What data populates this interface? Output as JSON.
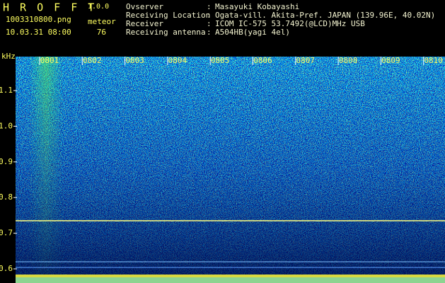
{
  "header": {
    "app_name": "H R O F F T",
    "version": "1.0.0",
    "file_name": "1003310800.png",
    "detection_label": "meteor",
    "timestamp": "10.03.31 08:00",
    "count": 76,
    "separator": ":",
    "info": [
      {
        "label": "Ovserver",
        "value": "Masayuki Kobayashi"
      },
      {
        "label": "Receiving Location",
        "value": "Ogata-vill. Akita-Pref. JAPAN (139.96E, 40.02N)"
      },
      {
        "label": "Receiver",
        "value": "ICOM IC-575 53.7492(@LCD)MHz USB"
      },
      {
        "label": "Receiving antenna",
        "value": "A504HB(yagi 4el)"
      }
    ]
  },
  "spectrogram": {
    "y_unit": "kHz",
    "y_ticks": [
      "1.1",
      "1.0",
      "0.9",
      "0.8",
      "0.7",
      "0.6"
    ],
    "x_ticks": [
      "0801",
      "0802",
      "0803",
      "0804",
      "0805",
      "0806",
      "0807",
      "0808",
      "0809",
      "0810"
    ]
  }
}
